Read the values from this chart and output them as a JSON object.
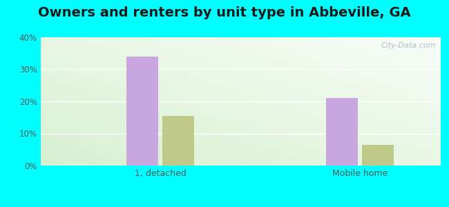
{
  "title": "Owners and renters by unit type in Abbeville, GA",
  "categories": [
    "1, detached",
    "Mobile home"
  ],
  "owner_values": [
    34.0,
    21.0
  ],
  "renter_values": [
    15.5,
    6.5
  ],
  "owner_color": "#c9a8df",
  "renter_color": "#bfc98a",
  "ylim": [
    0,
    40
  ],
  "yticks": [
    0,
    10,
    20,
    30,
    40
  ],
  "yticklabels": [
    "0%",
    "10%",
    "20%",
    "30%",
    "40%"
  ],
  "outer_color": "#00ffff",
  "bar_width": 0.32,
  "title_fontsize": 14,
  "watermark": "City-Data.com"
}
